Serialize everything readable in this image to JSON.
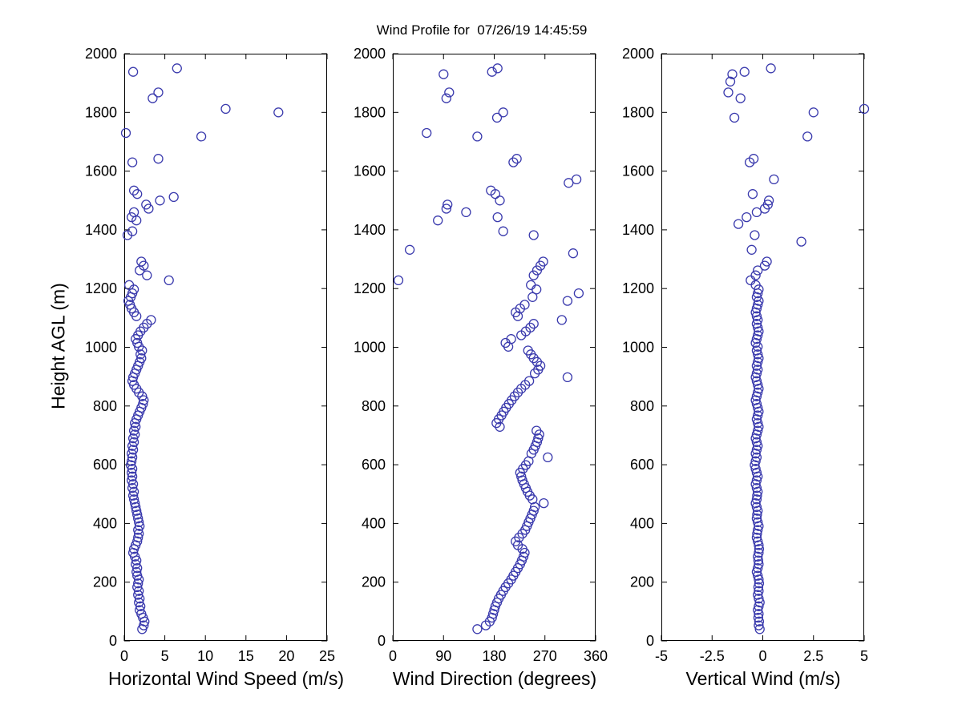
{
  "title": "Wind Profile for  07/26/19 14:45:59",
  "marker_color": "#3a3aad",
  "axis_color": "#000000",
  "chart_data": {
    "type": "scatter",
    "title": "Wind Profile for  07/26/19 14:45:59",
    "legend": "none",
    "grid": false,
    "shared_y": {
      "label": "Height AGL (m)",
      "lim": [
        0,
        2000
      ],
      "ticks": [
        0,
        200,
        400,
        600,
        800,
        1000,
        1200,
        1400,
        1600,
        1800,
        2000
      ]
    },
    "panels": [
      {
        "name": "horizontal-wind-speed",
        "xlabel": "Horizontal Wind Speed (m/s)",
        "xlim": [
          0,
          25
        ],
        "xticks": [
          0,
          5,
          10,
          15,
          20,
          25
        ],
        "value_index": 1
      },
      {
        "name": "wind-direction",
        "xlabel": "Wind Direction (degrees)",
        "xlim": [
          0,
          360
        ],
        "xticks": [
          0,
          90,
          180,
          270,
          360
        ],
        "value_index": 2
      },
      {
        "name": "vertical-wind",
        "xlabel": "Vertical Wind (m/s)",
        "xlim": [
          -5,
          5
        ],
        "xticks": [
          -5,
          -2.5,
          0,
          2.5,
          5
        ],
        "value_index": 3
      }
    ],
    "columns": [
      "height_agl_m",
      "horizontal_speed_ms",
      "direction_deg",
      "vertical_ms"
    ],
    "rows": [
      [
        40,
        2.2,
        150,
        -0.15
      ],
      [
        53,
        2.4,
        165,
        -0.2
      ],
      [
        66,
        2.5,
        172,
        -0.18
      ],
      [
        79,
        2.3,
        176,
        -0.22
      ],
      [
        92,
        2.1,
        178,
        -0.2
      ],
      [
        105,
        1.9,
        180,
        -0.25
      ],
      [
        118,
        2.0,
        182,
        -0.2
      ],
      [
        131,
        1.8,
        185,
        -0.15
      ],
      [
        144,
        1.9,
        188,
        -0.2
      ],
      [
        157,
        1.7,
        192,
        -0.25
      ],
      [
        170,
        1.8,
        196,
        -0.2
      ],
      [
        183,
        1.6,
        200,
        -0.22
      ],
      [
        196,
        1.7,
        205,
        -0.18
      ],
      [
        209,
        1.8,
        210,
        -0.2
      ],
      [
        222,
        1.6,
        214,
        -0.25
      ],
      [
        235,
        1.5,
        218,
        -0.3
      ],
      [
        248,
        1.6,
        222,
        -0.25
      ],
      [
        261,
        1.4,
        226,
        -0.2
      ],
      [
        274,
        1.5,
        229,
        -0.22
      ],
      [
        287,
        1.3,
        232,
        -0.25
      ],
      [
        300,
        1.1,
        234,
        -0.2
      ],
      [
        313,
        1.2,
        230,
        -0.18
      ],
      [
        326,
        1.4,
        222,
        -0.2
      ],
      [
        339,
        1.6,
        218,
        -0.25
      ],
      [
        352,
        1.7,
        224,
        -0.3
      ],
      [
        365,
        1.8,
        230,
        -0.28
      ],
      [
        378,
        1.7,
        235,
        -0.25
      ],
      [
        391,
        1.9,
        238,
        -0.2
      ],
      [
        404,
        1.8,
        241,
        -0.25
      ],
      [
        417,
        1.7,
        244,
        -0.3
      ],
      [
        430,
        1.6,
        247,
        -0.28
      ],
      [
        443,
        1.5,
        250,
        -0.25
      ],
      [
        456,
        1.4,
        252,
        -0.3
      ],
      [
        469,
        1.3,
        268,
        -0.35
      ],
      [
        482,
        1.2,
        248,
        -0.3
      ],
      [
        495,
        1.1,
        243,
        -0.28
      ],
      [
        508,
        1.2,
        239,
        -0.25
      ],
      [
        521,
        1.0,
        236,
        -0.3
      ],
      [
        534,
        1.1,
        233,
        -0.35
      ],
      [
        547,
        0.9,
        230,
        -0.3
      ],
      [
        560,
        1.0,
        228,
        -0.25
      ],
      [
        573,
        0.9,
        226,
        -0.3
      ],
      [
        586,
        1.0,
        231,
        -0.35
      ],
      [
        599,
        0.8,
        236,
        -0.4
      ],
      [
        612,
        0.9,
        241,
        -0.35
      ],
      [
        625,
        1.0,
        275,
        -0.3
      ],
      [
        638,
        0.9,
        246,
        -0.35
      ],
      [
        651,
        1.1,
        250,
        -0.3
      ],
      [
        664,
        1.0,
        253,
        -0.25
      ],
      [
        677,
        1.2,
        256,
        -0.3
      ],
      [
        690,
        1.1,
        258,
        -0.35
      ],
      [
        703,
        1.3,
        260,
        -0.3
      ],
      [
        716,
        1.2,
        255,
        -0.25
      ],
      [
        729,
        1.4,
        190,
        -0.2
      ],
      [
        742,
        1.3,
        184,
        -0.25
      ],
      [
        755,
        1.5,
        188,
        -0.3
      ],
      [
        768,
        1.7,
        193,
        -0.25
      ],
      [
        781,
        1.9,
        197,
        -0.2
      ],
      [
        794,
        2.1,
        201,
        -0.25
      ],
      [
        807,
        2.3,
        206,
        -0.3
      ],
      [
        820,
        2.4,
        211,
        -0.35
      ],
      [
        833,
        2.2,
        216,
        -0.3
      ],
      [
        846,
        1.8,
        222,
        -0.25
      ],
      [
        859,
        1.5,
        228,
        -0.2
      ],
      [
        872,
        1.2,
        235,
        -0.25
      ],
      [
        885,
        1.0,
        242,
        -0.3
      ],
      [
        898,
        1.1,
        310,
        -0.35
      ],
      [
        911,
        1.3,
        252,
        -0.3
      ],
      [
        924,
        1.5,
        258,
        -0.25
      ],
      [
        937,
        1.7,
        262,
        -0.3
      ],
      [
        950,
        1.9,
        256,
        -0.25
      ],
      [
        963,
        2.1,
        250,
        -0.2
      ],
      [
        976,
        2.0,
        245,
        -0.25
      ],
      [
        989,
        2.2,
        240,
        -0.3
      ],
      [
        1002,
        1.8,
        205,
        -0.25
      ],
      [
        1015,
        1.6,
        200,
        -0.35
      ],
      [
        1028,
        1.4,
        210,
        -0.3
      ],
      [
        1041,
        1.7,
        228,
        -0.25
      ],
      [
        1054,
        2.0,
        236,
        -0.2
      ],
      [
        1067,
        2.4,
        244,
        -0.25
      ],
      [
        1080,
        2.8,
        250,
        -0.3
      ],
      [
        1093,
        3.3,
        300,
        -0.25
      ],
      [
        1106,
        1.5,
        222,
        -0.3
      ],
      [
        1119,
        1.2,
        218,
        -0.35
      ],
      [
        1132,
        0.9,
        226,
        -0.3
      ],
      [
        1145,
        0.7,
        234,
        -0.25
      ],
      [
        1158,
        0.5,
        310,
        -0.2
      ],
      [
        1171,
        0.8,
        248,
        -0.3
      ],
      [
        1184,
        1.0,
        330,
        -0.25
      ],
      [
        1197,
        1.2,
        255,
        -0.2
      ],
      [
        1212,
        0.6,
        245,
        -0.35
      ],
      [
        1228,
        5.5,
        10,
        -0.6
      ],
      [
        1245,
        2.8,
        250,
        -0.35
      ],
      [
        1262,
        1.9,
        256,
        -0.25
      ],
      [
        1278,
        2.4,
        262,
        0.1
      ],
      [
        1292,
        2.1,
        267,
        0.2
      ],
      [
        1320,
        null,
        320,
        null
      ],
      [
        1332,
        null,
        30,
        -0.55
      ],
      [
        1360,
        null,
        null,
        1.9
      ],
      [
        1382,
        0.4,
        250,
        -0.4
      ],
      [
        1395,
        1.0,
        196,
        null
      ],
      [
        1420,
        null,
        null,
        -1.2
      ],
      [
        1432,
        1.5,
        80,
        null
      ],
      [
        1443,
        0.9,
        186,
        -0.8
      ],
      [
        1460,
        1.2,
        130,
        -0.3
      ],
      [
        1472,
        3.0,
        95,
        0.1
      ],
      [
        1486,
        2.7,
        97,
        0.25
      ],
      [
        1500,
        4.4,
        190,
        0.3
      ],
      [
        1512,
        6.1,
        null,
        null
      ],
      [
        1522,
        1.6,
        182,
        -0.5
      ],
      [
        1534,
        1.2,
        174,
        null
      ],
      [
        1560,
        null,
        312,
        null
      ],
      [
        1572,
        null,
        326,
        0.55
      ],
      [
        1630,
        1.0,
        214,
        -0.65
      ],
      [
        1642,
        4.2,
        220,
        -0.45
      ],
      [
        1718,
        9.5,
        150,
        2.2
      ],
      [
        1730,
        0.2,
        60,
        null
      ],
      [
        1782,
        null,
        185,
        -1.4
      ],
      [
        1800,
        19.0,
        196,
        2.5
      ],
      [
        1812,
        12.5,
        null,
        5.0
      ],
      [
        1848,
        3.5,
        95,
        -1.1
      ],
      [
        1868,
        4.2,
        100,
        -1.7
      ],
      [
        1905,
        null,
        null,
        -1.6
      ],
      [
        1930,
        null,
        90,
        -1.5
      ],
      [
        1938,
        1.1,
        176,
        -0.9
      ],
      [
        1950,
        6.5,
        186,
        0.4
      ]
    ]
  }
}
